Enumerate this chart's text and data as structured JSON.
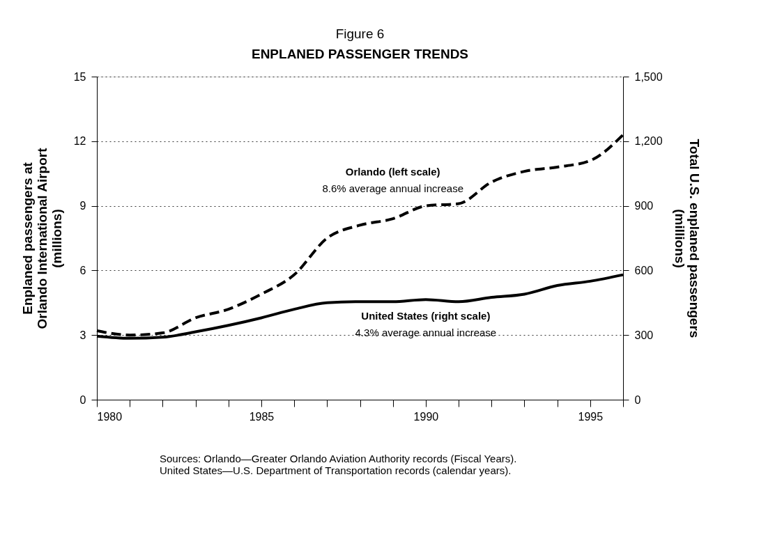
{
  "chart_data": {
    "type": "line",
    "title": "Figure 6",
    "subtitle": "ENPLANED PASSENGER TRENDS",
    "ylabel": "Enplaned passengers at\nOrlando International Airport\n(millions)",
    "y2label": "Total U.S. enplaned passengers\n(millions)",
    "x": [
      1980,
      1981,
      1982,
      1983,
      1984,
      1985,
      1986,
      1987,
      1988,
      1989,
      1990,
      1991,
      1992,
      1993,
      1994,
      1995,
      1996
    ],
    "series": [
      {
        "name": "Orlando (left scale)",
        "color": "#000000",
        "line_style": "dashed",
        "values": [
          3.2,
          3.0,
          3.1,
          3.8,
          4.2,
          4.9,
          5.8,
          7.5,
          8.1,
          8.4,
          9.0,
          9.1,
          10.1,
          10.6,
          10.8,
          11.1,
          12.3
        ]
      },
      {
        "name": "United States (right scale)",
        "color": "#000000",
        "line_style": "solid",
        "axis": "y2",
        "values": [
          295,
          285,
          290,
          315,
          345,
          380,
          420,
          450,
          455,
          455,
          465,
          455,
          475,
          490,
          530,
          550,
          580
        ]
      }
    ],
    "xlim": [
      1980,
      1996
    ],
    "xticks": [
      1980,
      {
        "value": 1981,
        "label": null
      },
      {
        "value": 1982,
        "label": null
      },
      {
        "value": 1983,
        "label": null
      },
      {
        "value": 1984,
        "label": null
      },
      1985,
      {
        "value": 1986,
        "label": null
      },
      {
        "value": 1987,
        "label": null
      },
      {
        "value": 1988,
        "label": null
      },
      {
        "value": 1989,
        "label": null
      },
      1990,
      {
        "value": 1991,
        "label": null
      },
      {
        "value": 1992,
        "label": null
      },
      {
        "value": 1993,
        "label": null
      },
      {
        "value": 1994,
        "label": null
      },
      1995,
      {
        "value": 1996,
        "label": null
      }
    ],
    "ylim": [
      0,
      15
    ],
    "yticks": [
      0,
      3,
      6,
      9,
      12,
      15
    ],
    "y2lim": [
      0,
      1500
    ],
    "y2ticks": [
      0,
      300,
      600,
      {
        "value": 900,
        "label": "900"
      },
      {
        "value": 1200,
        "label": "1,200"
      },
      {
        "value": 1500,
        "label": "1,500"
      }
    ],
    "grid": "y",
    "legend": false,
    "marker": "none",
    "annotations": [
      "8.6% average annual increase",
      "4.3% average annual increase",
      "Sources:  Orlando—Greater Orlando Aviation Authority records (Fiscal Years).\n               United States—U.S. Department of Transportation records (calendar years)."
    ]
  }
}
